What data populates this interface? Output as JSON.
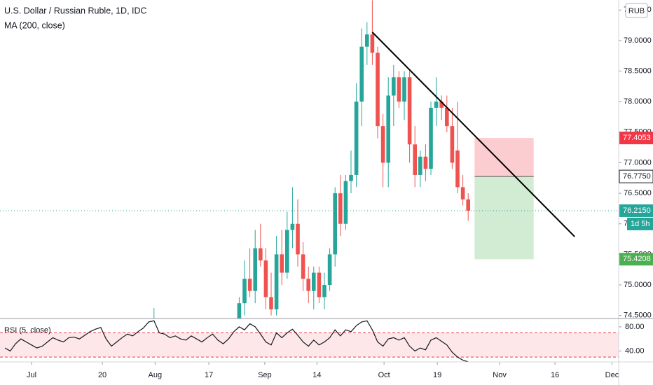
{
  "chart_data": [
    {
      "type": "candlestick",
      "title": "U.S. Dollar / Russian Ruble, 1D, IDC",
      "subtitle": "MA (200, close)",
      "currency": "RUB",
      "up_color": "#26a69a",
      "down_color": "#ef5350",
      "xlim": [
        -5.92,
        110.26
      ],
      "ylim": [
        74.45,
        79.664
      ],
      "yticks": [
        {
          "value": 74.5,
          "label": "74.5000"
        },
        {
          "value": 75.0,
          "label": "75.0000"
        },
        {
          "value": 75.5,
          "label": "75.5000"
        },
        {
          "value": 76.0,
          "label": "76.0000"
        },
        {
          "value": 76.5,
          "label": "76.5000"
        },
        {
          "value": 77.0,
          "label": "77.0000"
        },
        {
          "value": 77.5,
          "label": "77.5000"
        },
        {
          "value": 78.0,
          "label": "78.0000"
        },
        {
          "value": 78.5,
          "label": "78.5000"
        },
        {
          "value": 79.0,
          "label": "79.0000"
        },
        {
          "value": 79.5,
          "label": "79.5000"
        }
      ],
      "x": [
        23,
        39,
        40,
        41,
        42,
        43,
        44,
        45,
        46,
        47,
        48,
        49,
        50,
        51,
        52,
        53,
        54,
        55,
        56,
        57,
        58,
        59,
        60,
        61,
        62,
        63,
        64,
        65,
        66,
        67,
        68,
        69,
        70,
        71,
        72,
        73,
        74,
        75,
        76,
        77,
        78,
        79,
        80,
        81,
        82
      ],
      "open": [
        74.3,
        74.3,
        74.7,
        75.1,
        74.9,
        75.6,
        75.4,
        74.8,
        74.6,
        75.5,
        75.2,
        75.9,
        76.0,
        75.5,
        75.1,
        74.9,
        75.2,
        74.8,
        75.0,
        75.5,
        76.5,
        76.0,
        76.7,
        76.8,
        78.0,
        78.9,
        79.1,
        78.8,
        77.6,
        77.0,
        78.1,
        78.4,
        78.0,
        78.4,
        77.3,
        76.8,
        77.1,
        76.9,
        77.9,
        78.0,
        77.9,
        77.6,
        77.2,
        76.6,
        76.4
      ],
      "high": [
        74.62,
        74.8,
        75.4,
        75.6,
        75.9,
        76.0,
        75.6,
        75.2,
        75.8,
        75.9,
        76.2,
        76.6,
        76.4,
        75.7,
        75.3,
        75.3,
        75.3,
        75.2,
        75.6,
        76.6,
        76.8,
        76.8,
        77.2,
        78.3,
        79.2,
        79.3,
        79.66,
        78.9,
        77.8,
        78.4,
        78.6,
        78.5,
        78.5,
        78.5,
        77.6,
        77.2,
        77.3,
        78.0,
        78.4,
        78.1,
        78.1,
        77.9,
        78.0,
        76.8,
        76.5
      ],
      "low": [
        74.2,
        74.1,
        74.5,
        74.8,
        74.7,
        75.3,
        74.6,
        74.5,
        74.5,
        75.0,
        75.1,
        75.6,
        75.3,
        74.9,
        74.7,
        74.6,
        74.7,
        74.6,
        74.9,
        75.3,
        75.8,
        75.9,
        76.5,
        76.6,
        77.6,
        78.6,
        78.6,
        77.4,
        76.6,
        76.6,
        77.6,
        77.9,
        77.7,
        77.0,
        76.6,
        76.6,
        76.7,
        76.8,
        77.6,
        77.7,
        77.5,
        76.9,
        76.5,
        76.3,
        76.05
      ],
      "close": [
        74.4,
        74.7,
        75.1,
        74.9,
        75.6,
        75.4,
        74.8,
        74.6,
        75.5,
        75.2,
        75.9,
        76.0,
        75.5,
        75.1,
        74.9,
        75.2,
        74.8,
        75.0,
        75.5,
        76.5,
        76.0,
        76.7,
        76.8,
        78.0,
        78.9,
        79.1,
        78.8,
        77.6,
        77.0,
        78.1,
        78.4,
        78.0,
        78.4,
        77.3,
        76.8,
        77.1,
        76.9,
        77.9,
        78.0,
        77.9,
        77.6,
        77.0,
        76.6,
        76.4,
        76.215
      ],
      "trendline": {
        "x": [
          64,
          102
        ],
        "y": [
          79.137,
          75.79
        ],
        "color": "#000000"
      },
      "position": {
        "x": [
          83.2,
          94.3
        ],
        "entry": 76.775,
        "stop": 77.4053,
        "target": 75.4208
      },
      "price_tags": [
        {
          "value": 77.4053,
          "label": "77.4053",
          "color": "#f23645"
        },
        {
          "value": 76.775,
          "label": "76.7750",
          "color": "#ffffff"
        },
        {
          "value": 76.215,
          "label": "76.2150",
          "color": "#26a69a"
        },
        {
          "value": 75.4208,
          "label": "75.4208",
          "color": "#4caf50"
        }
      ],
      "countdown": "1d 5h"
    },
    {
      "type": "line",
      "title": "RSI (5, close)",
      "color": "#131722",
      "xlim": [
        -5.92,
        110.26
      ],
      "ylim": [
        22,
        92.6
      ],
      "yticks": [
        {
          "value": 80,
          "label": "80.00"
        },
        {
          "value": 40,
          "label": "40.00"
        }
      ],
      "bands": [
        70,
        30
      ],
      "xticks": [
        {
          "value": 0,
          "label": "Jul"
        },
        {
          "value": 13.3,
          "label": "20"
        },
        {
          "value": 23.2,
          "label": "Aug"
        },
        {
          "value": 33.3,
          "label": "17"
        },
        {
          "value": 43.8,
          "label": "Sep"
        },
        {
          "value": 53.6,
          "label": "14"
        },
        {
          "value": 66.2,
          "label": "Oct"
        },
        {
          "value": 76.2,
          "label": "19"
        },
        {
          "value": 87.9,
          "label": "Nov"
        },
        {
          "value": 98.3,
          "label": "16"
        },
        {
          "value": 109,
          "label": "Dec"
        }
      ],
      "x": [
        -5,
        -4,
        -3,
        -2,
        -1,
        0,
        1,
        2,
        3,
        4,
        5,
        6,
        7,
        8,
        9,
        10,
        11,
        12,
        13,
        14,
        15,
        16,
        17,
        18,
        19,
        20,
        21,
        22,
        23,
        24,
        25,
        26,
        27,
        28,
        29,
        30,
        31,
        32,
        33,
        34,
        35,
        36,
        37,
        38,
        39,
        40,
        41,
        42,
        43,
        44,
        45,
        46,
        47,
        48,
        49,
        50,
        51,
        52,
        53,
        54,
        55,
        56,
        57,
        58,
        59,
        60,
        61,
        62,
        63,
        64,
        65,
        66,
        67,
        68,
        69,
        70,
        71,
        72,
        73,
        74,
        75,
        76,
        77,
        78,
        79,
        80,
        81,
        82
      ],
      "values": [
        45,
        40,
        52,
        60,
        55,
        50,
        45,
        48,
        55,
        62,
        58,
        55,
        62,
        63,
        60,
        66,
        72,
        76,
        79,
        60,
        48,
        55,
        62,
        68,
        65,
        72,
        78,
        88,
        90,
        70,
        68,
        62,
        65,
        60,
        58,
        65,
        60,
        55,
        62,
        68,
        58,
        52,
        60,
        72,
        80,
        75,
        85,
        80,
        68,
        55,
        50,
        70,
        62,
        70,
        76,
        66,
        55,
        48,
        58,
        50,
        55,
        62,
        75,
        65,
        75,
        72,
        82,
        88,
        90,
        75,
        55,
        48,
        60,
        62,
        58,
        62,
        48,
        40,
        45,
        42,
        58,
        62,
        56,
        50,
        38,
        30,
        25,
        22
      ]
    }
  ]
}
